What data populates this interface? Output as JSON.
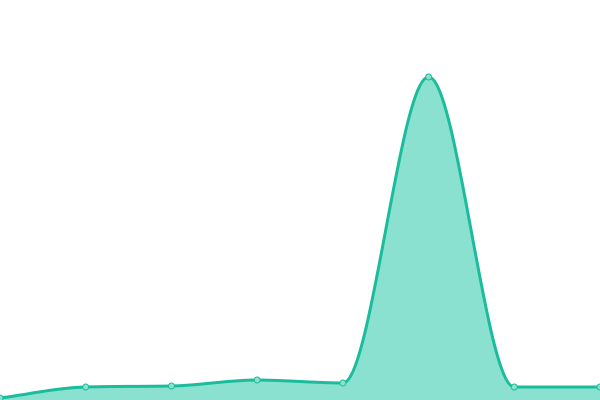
{
  "chart_data": {
    "type": "area",
    "x": [
      0,
      1,
      2,
      3,
      4,
      5,
      6,
      7
    ],
    "values": [
      2,
      13,
      14,
      20,
      17,
      323,
      13,
      13
    ],
    "ylim": [
      0,
      400
    ],
    "grid": false,
    "axes_visible": false,
    "curve": "smooth",
    "colors": {
      "line": "#1abc9c",
      "fill": "#8ae1d0",
      "point_fill": "#8ae1d0"
    }
  }
}
